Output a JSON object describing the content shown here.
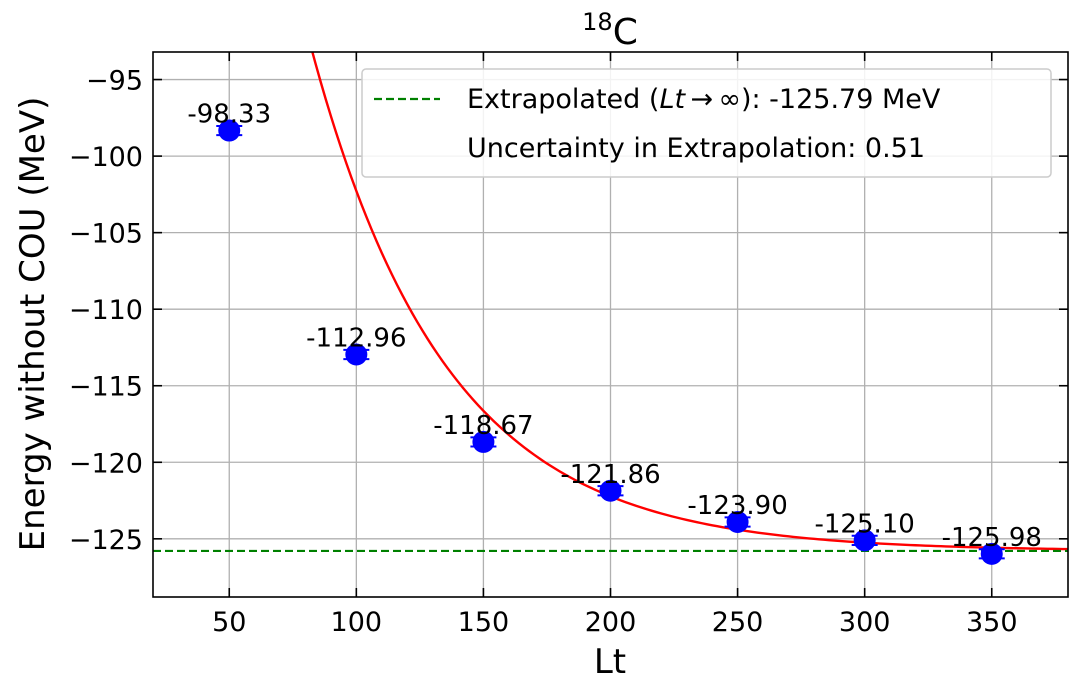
{
  "chart_data": {
    "type": "scatter",
    "title": {
      "base": "C",
      "superscript": "18"
    },
    "xlabel": "Lt",
    "ylabel": "Energy without COU (MeV)",
    "xlim": [
      20,
      380
    ],
    "ylim": [
      -128.8,
      -93.2
    ],
    "xticks": [
      50,
      100,
      150,
      200,
      250,
      300,
      350
    ],
    "yticks": [
      -95,
      -100,
      -105,
      -110,
      -115,
      -120,
      -125
    ],
    "ytick_labels": [
      "−95",
      "−100",
      "−105",
      "−110",
      "−115",
      "−120",
      "−125"
    ],
    "grid": true,
    "series": [
      {
        "name": "data",
        "color": "#0000ff",
        "x": [
          50,
          100,
          150,
          200,
          250,
          300,
          350
        ],
        "y": [
          -98.33,
          -112.96,
          -118.67,
          -121.86,
          -123.9,
          -125.1,
          -125.98
        ],
        "yerr": [
          0.3,
          0.3,
          0.3,
          0.3,
          0.3,
          0.3,
          0.3
        ],
        "labels": [
          "-98.33",
          "-112.96",
          "-118.67",
          "-121.86",
          "-123.90",
          "-125.10",
          "-125.98"
        ]
      }
    ],
    "fit": {
      "color": "#ff0000",
      "asymptote": -125.79,
      "amplitude": 60.4,
      "tau": 53
    },
    "extrapolated_line": {
      "y": -125.79,
      "color": "#008000"
    },
    "legend": {
      "position": "top-right",
      "entries": [
        {
          "prefix": "Extrapolated (",
          "math": "Lt → ∞",
          "suffix": "): -125.79 MeV"
        },
        {
          "text": "Uncertainty in Extrapolation: 0.51"
        }
      ]
    }
  }
}
